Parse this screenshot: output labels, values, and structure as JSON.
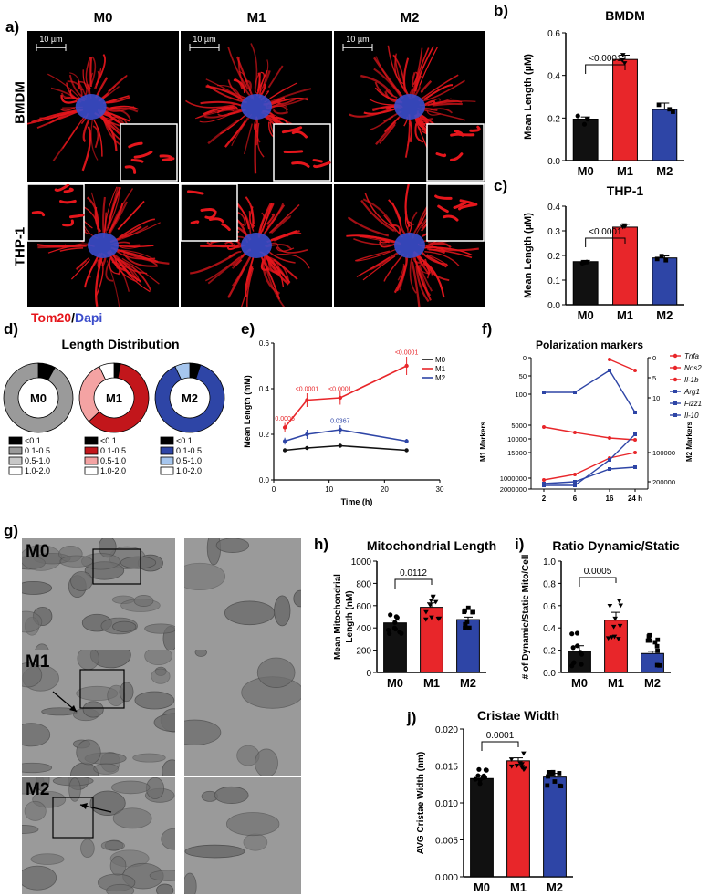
{
  "panels": {
    "a": "a)",
    "b": "b)",
    "c": "c)",
    "d": "d)",
    "e": "e)",
    "f": "f)",
    "g": "g)",
    "h": "h)",
    "i": "i)",
    "j": "j)"
  },
  "panel_a": {
    "columns": [
      "M0",
      "M1",
      "M2"
    ],
    "rows": [
      "BMDM",
      "THP-1"
    ],
    "scalebar": "10 µm",
    "stain_red": "Tom20",
    "stain_sep": "/",
    "stain_blue": "Dapi"
  },
  "panel_g": {
    "labels": [
      "M0",
      "M1",
      "M2"
    ]
  },
  "colors": {
    "M0": "#111111",
    "M1": "#e8262a",
    "M2": "#2e45a6",
    "tomato": "#e5161c",
    "dapi": "#3b4ccb"
  },
  "chart_data": [
    {
      "id": "b",
      "type": "bar",
      "title": "BMDM",
      "ylabel": "Mean Length (µM)",
      "categories": [
        "M0",
        "M1",
        "M2"
      ],
      "values": [
        0.195,
        0.475,
        0.24
      ],
      "errors": [
        0.01,
        0.02,
        0.03
      ],
      "ylim": [
        0,
        0.6
      ],
      "yticks": [
        "0.0",
        "0.2",
        "0.4",
        "0.6"
      ],
      "annotation": {
        "text": "<0.0001",
        "from": "M0",
        "to": "M1"
      }
    },
    {
      "id": "c",
      "type": "bar",
      "title": "THP-1",
      "ylabel": "Mean  Length (µM)",
      "categories": [
        "M0",
        "M1",
        "M2"
      ],
      "values": [
        0.175,
        0.315,
        0.19
      ],
      "errors": [
        0.005,
        0.012,
        0.008
      ],
      "ylim": [
        0,
        0.4
      ],
      "yticks": [
        "0.0",
        "0.1",
        "0.2",
        "0.3",
        "0.4"
      ],
      "annotation": {
        "text": "<0.0001",
        "from": "M0",
        "to": "M1"
      }
    },
    {
      "id": "d",
      "type": "pie",
      "title": "Length Distribution",
      "legend": [
        "<0.1",
        "0.1-0.5",
        "0.5-1.0",
        "1.0-2.0"
      ],
      "rings": [
        {
          "label": "M0",
          "values": [
            0.08,
            0.92,
            0,
            0
          ],
          "colors": [
            "#000000",
            "#9a9a9a",
            "#c8c8c8",
            "#ffffff"
          ]
        },
        {
          "label": "M1",
          "values": [
            0.03,
            0.6,
            0.3,
            0.07
          ],
          "colors": [
            "#000000",
            "#c2161b",
            "#f4a3a3",
            "#ffffff"
          ]
        },
        {
          "label": "M2",
          "values": [
            0.05,
            0.88,
            0.07,
            0
          ],
          "colors": [
            "#000000",
            "#2e45a6",
            "#a6c6ee",
            "#ffffff"
          ]
        }
      ],
      "legend_colors": [
        [
          "#000000",
          "#9a9a9a",
          "#c8c8c8",
          "#ffffff"
        ],
        [
          "#000000",
          "#c2161b",
          "#f4a3a3",
          "#ffffff"
        ],
        [
          "#000000",
          "#2e45a6",
          "#a6c6ee",
          "#ffffff"
        ]
      ]
    },
    {
      "id": "e",
      "type": "line",
      "xlabel": "Time (h)",
      "ylabel": "Mean Length (mM)",
      "xlim": [
        0,
        30
      ],
      "ylim": [
        0,
        0.6
      ],
      "xticks": [
        "0",
        "10",
        "20",
        "30"
      ],
      "yticks": [
        "0.0",
        "0.2",
        "0.4",
        "0.6"
      ],
      "series": [
        {
          "name": "M0",
          "x": [
            2,
            6,
            12,
            24
          ],
          "y": [
            0.13,
            0.14,
            0.15,
            0.13
          ],
          "err": [
            0.005,
            0.005,
            0.005,
            0.005
          ]
        },
        {
          "name": "M1",
          "x": [
            2,
            6,
            12,
            24
          ],
          "y": [
            0.23,
            0.35,
            0.36,
            0.5
          ],
          "err": [
            0.02,
            0.03,
            0.03,
            0.04
          ]
        },
        {
          "name": "M2",
          "x": [
            2,
            6,
            12,
            24
          ],
          "y": [
            0.17,
            0.2,
            0.22,
            0.17
          ],
          "err": [
            0.015,
            0.02,
            0.02,
            0.01
          ]
        }
      ],
      "annotations": [
        {
          "text": "0.0006",
          "x": 2,
          "y": 0.26,
          "series": "M1"
        },
        {
          "text": "<0.0001",
          "x": 6,
          "y": 0.39,
          "series": "M1"
        },
        {
          "text": "<0.0001",
          "x": 12,
          "y": 0.39,
          "series": "M1"
        },
        {
          "text": "<0.0001",
          "x": 24,
          "y": 0.55,
          "series": "M1"
        },
        {
          "text": "0.0367",
          "x": 12,
          "y": 0.25,
          "series": "M2"
        }
      ]
    },
    {
      "id": "f",
      "type": "line",
      "title": "Polarization markers",
      "ylabel": "M1 Markers",
      "ylabel_right": "M2 Markers",
      "xticks": [
        "2",
        "6",
        "16",
        "24 h"
      ],
      "left_ticks": [
        "0",
        "50",
        "100",
        "5000",
        "10000",
        "15000",
        "1000000",
        "2000000"
      ],
      "right_ticks": [
        "0",
        "5",
        "10",
        "100000",
        "200000"
      ],
      "series": [
        {
          "name": "Tnfa",
          "axis": "left"
        },
        {
          "name": "Nos2",
          "axis": "left"
        },
        {
          "name": "Il-1b",
          "axis": "left"
        },
        {
          "name": "Arg1",
          "axis": "right"
        },
        {
          "name": "Fizz1",
          "axis": "right"
        },
        {
          "name": "Il-10",
          "axis": "right"
        }
      ]
    },
    {
      "id": "h",
      "type": "bar",
      "title": "Mitochondrial Length",
      "ylabel": "Mean Mitochondrial Length (nM)",
      "ylabel_lines": [
        "Mean Mitochondrial",
        "Length (nM)"
      ],
      "categories": [
        "M0",
        "M1",
        "M2"
      ],
      "values": [
        445,
        585,
        475
      ],
      "errors": [
        25,
        40,
        22
      ],
      "ylim": [
        0,
        1000
      ],
      "yticks": [
        "0",
        "200",
        "400",
        "600",
        "800",
        "1000"
      ],
      "annotation": {
        "text": "0.0112",
        "from": "M0",
        "to": "M1"
      }
    },
    {
      "id": "i",
      "type": "bar",
      "title": "Ratio Dynamic/Static",
      "ylabel": "# of Dynamic/Static Mito/Cell",
      "categories": [
        "M0",
        "M1",
        "M2"
      ],
      "values": [
        0.19,
        0.47,
        0.17
      ],
      "errors": [
        0.05,
        0.07,
        0.02
      ],
      "ylim": [
        0,
        1.0
      ],
      "yticks": [
        "0.0",
        "0.2",
        "0.4",
        "0.6",
        "0.8",
        "1.0"
      ],
      "annotation": {
        "text": "0.0005",
        "from": "M0",
        "to": "M1"
      }
    },
    {
      "id": "j",
      "type": "bar",
      "title": "Cristae Width",
      "ylabel": "AVG Cristae Width (nm)",
      "categories": [
        "M0",
        "M1",
        "M2"
      ],
      "values": [
        0.0133,
        0.0157,
        0.0135
      ],
      "errors": [
        0.0004,
        0.0004,
        0.0005
      ],
      "ylim": [
        0,
        0.02
      ],
      "yticks": [
        "0.000",
        "0.005",
        "0.010",
        "0.015",
        "0.020"
      ],
      "annotation": {
        "text": "0.0001",
        "from": "M0",
        "to": "M1"
      }
    }
  ]
}
